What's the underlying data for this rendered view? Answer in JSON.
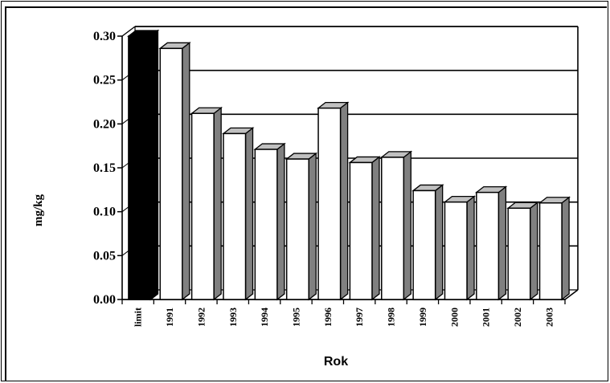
{
  "chart_data": {
    "type": "bar",
    "title": "",
    "xlabel": "Rok",
    "ylabel": "mg/kg",
    "ylim": [
      0,
      0.3
    ],
    "yticks": [
      "0.00",
      "0.05",
      "0.10",
      "0.15",
      "0.20",
      "0.25",
      "0.30"
    ],
    "categories": [
      "limit",
      "1991",
      "1992",
      "1993",
      "1994",
      "1995",
      "1996",
      "1997",
      "1998",
      "1999",
      "2000",
      "2001",
      "2002",
      "2003"
    ],
    "values": [
      0.3,
      0.286,
      0.212,
      0.189,
      0.171,
      0.16,
      0.218,
      0.156,
      0.162,
      0.124,
      0.111,
      0.122,
      0.104,
      0.11
    ],
    "colors": {
      "limit": "#000000",
      "bar": "#ffffff",
      "side": "#808080",
      "top": "#c0c0c0"
    },
    "grid": true,
    "style": "3d"
  }
}
